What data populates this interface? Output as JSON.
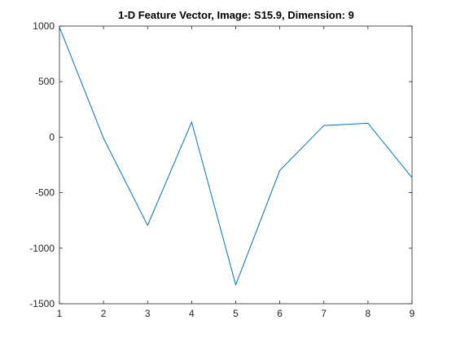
{
  "chart_data": {
    "type": "line",
    "title": "1-D Feature Vector, Image: S15.9, Dimension: 9",
    "xlabel": "",
    "ylabel": "",
    "x": [
      1,
      2,
      3,
      4,
      5,
      6,
      7,
      8,
      9
    ],
    "series": [
      {
        "values": [
          990,
          -10,
          -795,
          135,
          -1330,
          -300,
          105,
          125,
          -365
        ]
      }
    ],
    "xlim": [
      1,
      9
    ],
    "ylim": [
      -1500,
      1000
    ],
    "xticks": [
      1,
      2,
      3,
      4,
      5,
      6,
      7,
      8,
      9
    ],
    "xtick_labels": [
      "1",
      "2",
      "3",
      "4",
      "5",
      "6",
      "7",
      "8",
      "9"
    ],
    "yticks": [
      -1500,
      -1000,
      -500,
      0,
      500,
      1000
    ],
    "ytick_labels": [
      "-1500",
      "-1000",
      "-500",
      "0",
      "500",
      "1000"
    ],
    "grid": false,
    "legend": "none",
    "colors": {
      "line": "#0072BD",
      "axes": "#262626",
      "background": "#FFFFFF"
    }
  }
}
